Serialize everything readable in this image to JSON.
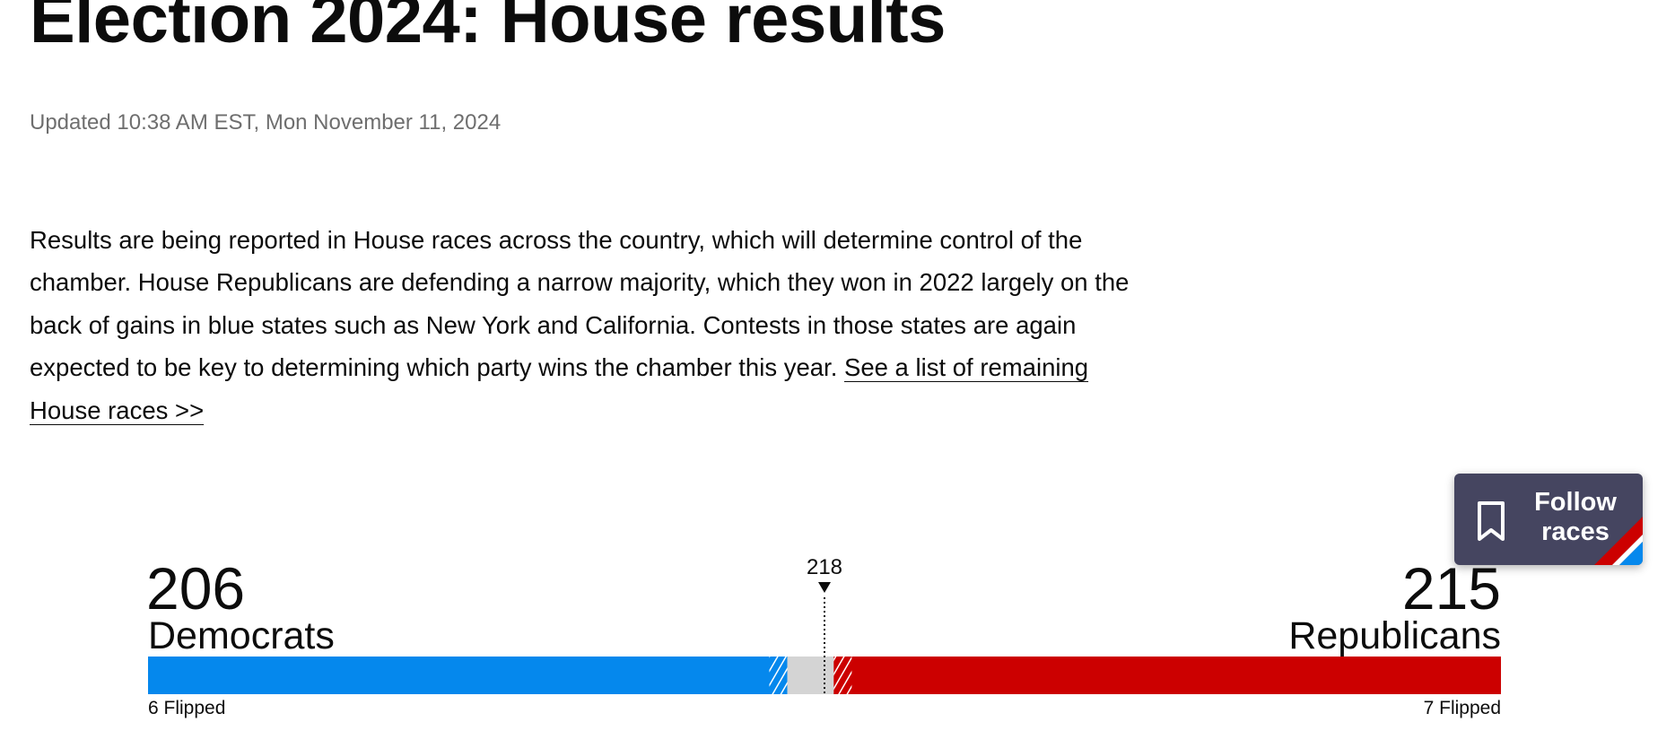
{
  "header": {
    "title": "Election 2024: House results",
    "updated": "Updated 10:38 AM EST, Mon November 11, 2024"
  },
  "intro": {
    "text": "Results are being reported in House races across the country, which will determine control of the chamber. House Republicans are defending a narrow majority, which they won in 2022 largely on the back of gains in blue states such as New York and California. Contests in those states are again expected to be key to determining which party wins the chamber this year.",
    "link": "See a list of remaining House races >>"
  },
  "follow_button": {
    "label": "Follow races"
  },
  "tally": {
    "majority": 218,
    "parties": [
      {
        "name": "Democrats",
        "seats": 206,
        "flipped": "6 Flipped",
        "color": "#0588ed"
      },
      {
        "name": "Republicans",
        "seats": 215,
        "flipped": "7 Flipped",
        "color": "#cc0000"
      }
    ]
  }
}
